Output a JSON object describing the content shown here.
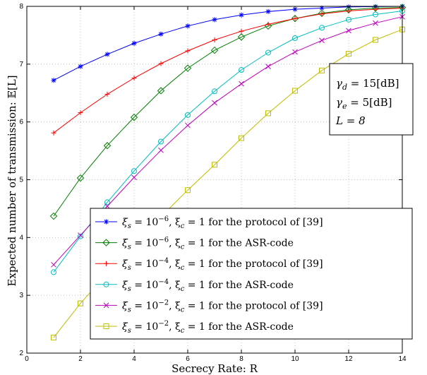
{
  "chart_data": {
    "type": "line",
    "title": "",
    "xlabel": "Secrecy Rate: R",
    "ylabel": "Expected number of transmission: 𝔼[L]",
    "xlim": [
      0,
      14
    ],
    "ylim": [
      2,
      8
    ],
    "xticks": [
      0,
      2,
      4,
      6,
      8,
      10,
      12,
      14
    ],
    "yticks": [
      2,
      3,
      4,
      5,
      6,
      7,
      8
    ],
    "grid": true,
    "legend_position": "bottom-right",
    "x": [
      1,
      2,
      3,
      4,
      5,
      6,
      7,
      8,
      9,
      10,
      11,
      12,
      13,
      14
    ],
    "series": [
      {
        "name": "ξ_s = 10^-6, ξ_c = 1 for the protocol of [39]",
        "color": "#0000ff",
        "marker": "star",
        "values": [
          6.72,
          6.96,
          7.17,
          7.36,
          7.52,
          7.66,
          7.77,
          7.85,
          7.91,
          7.95,
          7.97,
          7.99,
          7.995,
          8.0
        ]
      },
      {
        "name": "ξ_s = 10^-6, ξ_c = 1 for the ASR-code",
        "color": "#008000",
        "marker": "diamond",
        "values": [
          4.37,
          5.03,
          5.59,
          6.08,
          6.54,
          6.93,
          7.24,
          7.47,
          7.66,
          7.79,
          7.88,
          7.94,
          7.97,
          7.98
        ]
      },
      {
        "name": "ξ_s = 10^-4, ξ_c = 1 for the protocol of [39]",
        "color": "#ff0000",
        "marker": "plus",
        "values": [
          5.81,
          6.16,
          6.48,
          6.76,
          7.01,
          7.23,
          7.42,
          7.57,
          7.69,
          7.79,
          7.87,
          7.92,
          7.95,
          7.97
        ]
      },
      {
        "name": "ξ_s = 10^-4, ξ_c = 1 for the ASR-code",
        "color": "#00bfbf",
        "marker": "circle",
        "values": [
          3.4,
          4.02,
          4.61,
          5.15,
          5.66,
          6.12,
          6.53,
          6.9,
          7.2,
          7.45,
          7.63,
          7.77,
          7.86,
          7.92
        ]
      },
      {
        "name": "ξ_s = 10^-2, ξ_c = 1 for the protocol of [39]",
        "color": "#bf00bf",
        "marker": "x",
        "values": [
          3.53,
          4.04,
          4.54,
          5.04,
          5.51,
          5.94,
          6.33,
          6.66,
          6.96,
          7.21,
          7.41,
          7.58,
          7.71,
          7.82
        ]
      },
      {
        "name": "ξ_s = 10^-2, ξ_c = 1 for the ASR-code",
        "color": "#bfbf00",
        "marker": "square",
        "values": [
          2.27,
          2.86,
          3.38,
          3.86,
          4.36,
          4.82,
          5.26,
          5.72,
          6.15,
          6.54,
          6.89,
          7.18,
          7.42,
          7.6
        ]
      }
    ],
    "legend_entries": [
      {
        "sym": "ξ",
        "sub1": "s",
        "mid": " = 10",
        "exp": "−6",
        "comma": ", ξ",
        "sub2": "c",
        "tail": " = 1 for the protocol of [39]"
      },
      {
        "sym": "ξ",
        "sub1": "s",
        "mid": " = 10",
        "exp": "−6",
        "comma": ", ξ",
        "sub2": "c",
        "tail": " = 1 for the ASR-code"
      },
      {
        "sym": "ξ",
        "sub1": "s",
        "mid": " = 10",
        "exp": "−4",
        "comma": ", ξ",
        "sub2": "c",
        "tail": " = 1 for the protocol of [39]"
      },
      {
        "sym": "ξ",
        "sub1": "s",
        "mid": " = 10",
        "exp": "−4",
        "comma": ", ξ",
        "sub2": "c",
        "tail": " = 1 for the ASR-code"
      },
      {
        "sym": "ξ",
        "sub1": "s",
        "mid": " = 10",
        "exp": "−2",
        "comma": ", ξ",
        "sub2": "c",
        "tail": " = 1 for the protocol of [39]"
      },
      {
        "sym": "ξ",
        "sub1": "s",
        "mid": " = 10",
        "exp": "−2",
        "comma": ", ξ",
        "sub2": "c",
        "tail": " = 1 for the ASR-code"
      }
    ],
    "annotation": {
      "line1": {
        "sym": "γ",
        "sub": "d",
        "rest": " = 15[dB]"
      },
      "line2": {
        "sym": "γ",
        "sub": "e",
        "rest": " = 5[dB]"
      },
      "line3": {
        "text": "L = 8"
      }
    }
  }
}
